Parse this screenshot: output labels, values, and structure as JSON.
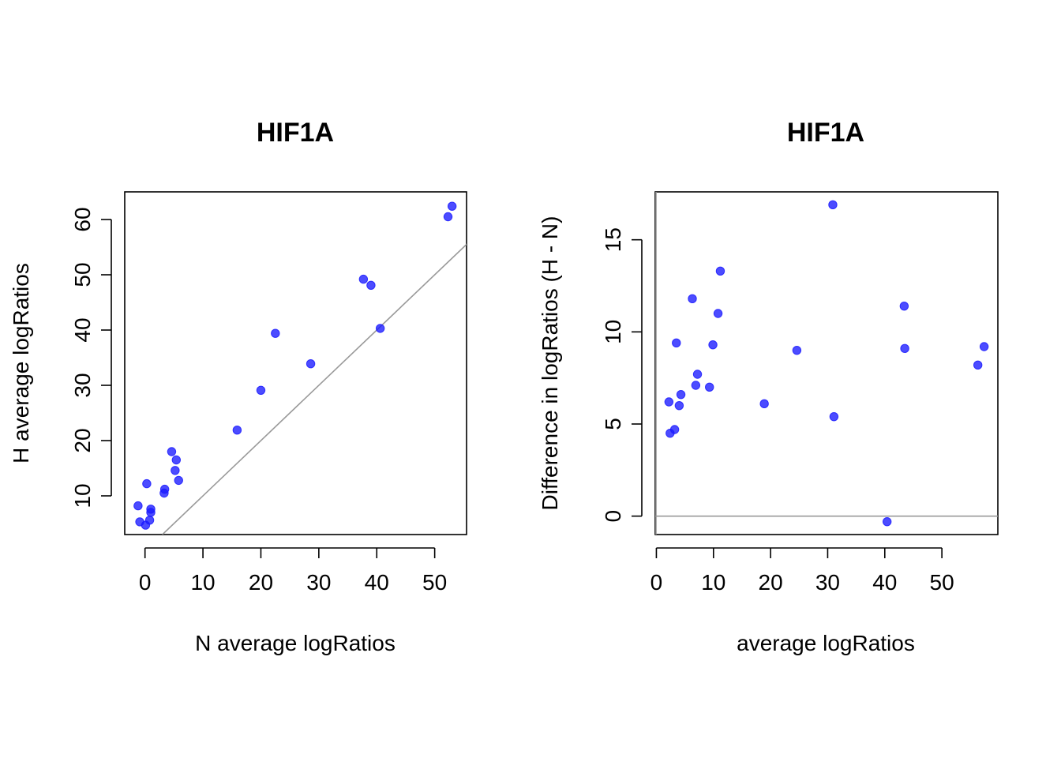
{
  "chart_data": [
    {
      "type": "scatter",
      "title": "HIF1A",
      "xlabel": "N average logRatios",
      "ylabel": "H average logRatios",
      "xlim": [
        -3.5,
        55.5
      ],
      "ylim": [
        3,
        65
      ],
      "xticks": [
        0,
        10,
        20,
        30,
        40,
        50
      ],
      "yticks": [
        10,
        20,
        30,
        40,
        50,
        60
      ],
      "grid": false,
      "point_color": "#1a1aff",
      "reference_line": {
        "type": "identity",
        "color": "#999999"
      },
      "points": [
        {
          "x": -1.2,
          "y": 8.2
        },
        {
          "x": -0.9,
          "y": 5.3
        },
        {
          "x": 0.1,
          "y": 4.7
        },
        {
          "x": 0.3,
          "y": 12.2
        },
        {
          "x": 0.8,
          "y": 5.6
        },
        {
          "x": 1.0,
          "y": 7.0
        },
        {
          "x": 1.0,
          "y": 7.6
        },
        {
          "x": 3.3,
          "y": 10.5
        },
        {
          "x": 3.4,
          "y": 11.2
        },
        {
          "x": 4.6,
          "y": 18.0
        },
        {
          "x": 5.2,
          "y": 14.6
        },
        {
          "x": 5.4,
          "y": 16.5
        },
        {
          "x": 5.8,
          "y": 12.8
        },
        {
          "x": 15.9,
          "y": 21.9
        },
        {
          "x": 20.0,
          "y": 29.1
        },
        {
          "x": 22.5,
          "y": 39.4
        },
        {
          "x": 28.6,
          "y": 33.9
        },
        {
          "x": 37.7,
          "y": 49.2
        },
        {
          "x": 39.0,
          "y": 48.1
        },
        {
          "x": 40.6,
          "y": 40.3
        },
        {
          "x": 52.3,
          "y": 60.5
        },
        {
          "x": 53.0,
          "y": 62.4
        }
      ]
    },
    {
      "type": "scatter",
      "title": "HIF1A",
      "xlabel": "average logRatios",
      "ylabel": "Difference in logRatios (H - N)",
      "xlim": [
        -0.2,
        59.8
      ],
      "ylim": [
        -1,
        17.6
      ],
      "xticks": [
        0,
        10,
        20,
        30,
        40,
        50
      ],
      "yticks": [
        0,
        5,
        10,
        15
      ],
      "grid": false,
      "point_color": "#1a1aff",
      "reference_line": {
        "type": "horizontal",
        "y": 0,
        "color": "#999999"
      },
      "points": [
        {
          "x": 2.2,
          "y": 6.2
        },
        {
          "x": 2.4,
          "y": 4.5
        },
        {
          "x": 3.2,
          "y": 4.7
        },
        {
          "x": 3.5,
          "y": 9.4
        },
        {
          "x": 4.0,
          "y": 6.0
        },
        {
          "x": 4.3,
          "y": 6.6
        },
        {
          "x": 6.3,
          "y": 11.8
        },
        {
          "x": 6.9,
          "y": 7.1
        },
        {
          "x": 7.2,
          "y": 7.7
        },
        {
          "x": 9.3,
          "y": 7.0
        },
        {
          "x": 9.9,
          "y": 9.3
        },
        {
          "x": 10.8,
          "y": 11.0
        },
        {
          "x": 11.2,
          "y": 13.3
        },
        {
          "x": 18.9,
          "y": 6.1
        },
        {
          "x": 24.6,
          "y": 9.0
        },
        {
          "x": 30.9,
          "y": 16.9
        },
        {
          "x": 31.1,
          "y": 5.4
        },
        {
          "x": 40.4,
          "y": -0.3
        },
        {
          "x": 43.4,
          "y": 11.4
        },
        {
          "x": 43.5,
          "y": 9.1
        },
        {
          "x": 56.3,
          "y": 8.2
        },
        {
          "x": 57.4,
          "y": 9.2
        }
      ]
    }
  ]
}
